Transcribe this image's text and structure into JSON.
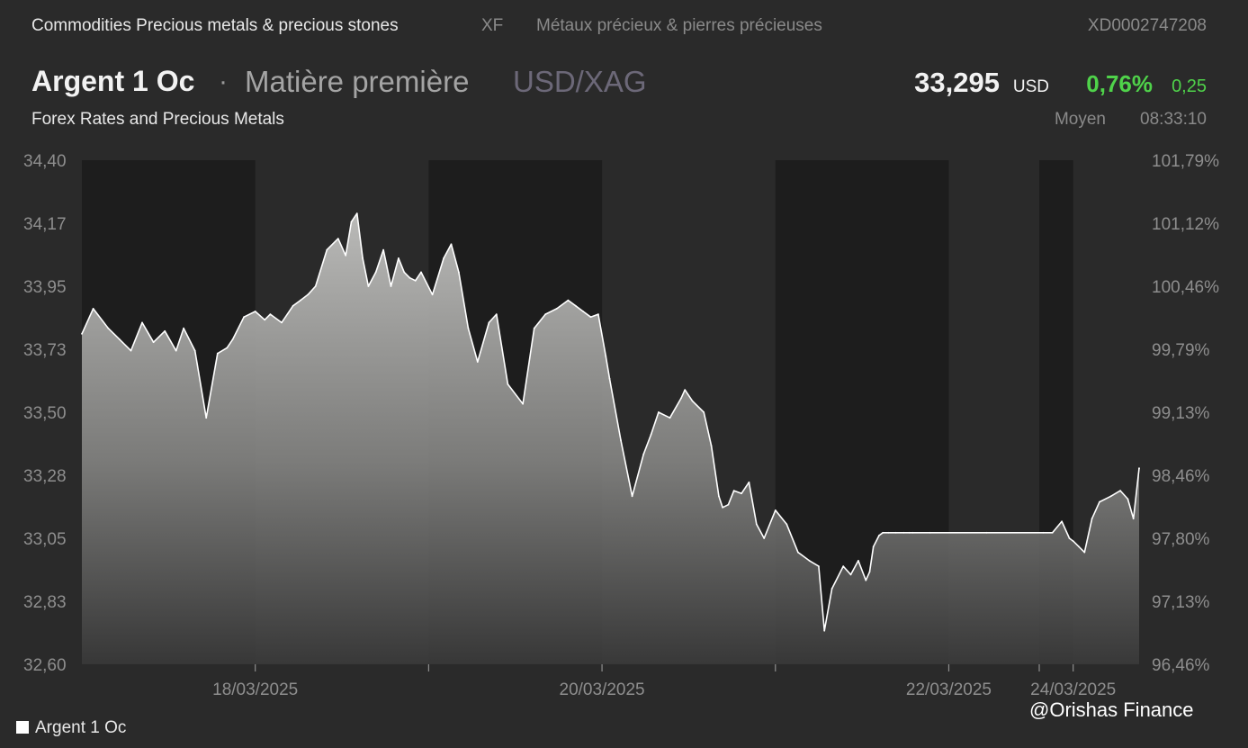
{
  "header": {
    "breadcrumb": "Commodities Precious metals & precious stones",
    "exchange": "XF",
    "breadcrumb_fr": "Métaux précieux & pierres précieuses",
    "isin": "XD0002747208"
  },
  "instrument": {
    "name": "Argent 1 Oc",
    "separator": "·",
    "type": "Matière première",
    "pair": "USD/XAG",
    "price": "33,295",
    "currency": "USD",
    "change_pct": "0,76%",
    "change_abs": "0,25",
    "source": "Forex Rates and Precious Metals",
    "quote_type": "Moyen",
    "time": "08:33:10"
  },
  "colors": {
    "background": "#2a2a2a",
    "plot_band_dark": "#1d1d1d",
    "plot_band_light": "#2a2a2a",
    "line": "#ffffff",
    "positive": "#4fd24a"
  },
  "chart_data": {
    "type": "area",
    "series": [
      {
        "name": "Argent 1 Oc",
        "x": [
          0,
          0.3,
          0.7,
          1.0,
          1.3,
          1.6,
          1.9,
          2.2,
          2.5,
          2.7,
          3.0,
          3.3,
          3.6,
          3.85,
          4.0,
          4.3,
          4.6,
          4.85,
          5.0,
          5.3,
          5.6,
          5.8,
          6.0,
          6.2,
          6.5,
          6.8,
          7.0,
          7.15,
          7.3,
          7.45,
          7.6,
          7.8,
          8.0,
          8.2,
          8.4,
          8.55,
          8.7,
          8.85,
          9.0,
          9.3,
          9.6,
          9.8,
          10.0,
          10.25,
          10.5,
          10.8,
          11.0,
          11.3,
          11.7,
          12.0,
          12.3,
          12.6,
          12.9,
          13.1,
          13.3,
          13.5,
          13.7,
          13.9,
          14.0,
          14.3,
          14.6,
          14.9,
          15.1,
          15.3,
          15.6,
          15.9,
          16.0,
          16.2,
          16.5,
          16.7,
          16.9,
          17.0,
          17.15,
          17.3,
          17.5,
          17.7,
          17.9,
          18.1,
          18.4,
          18.7,
          19.0,
          19.3,
          19.55,
          19.7,
          19.9,
          20.2,
          20.4,
          20.6,
          20.8,
          20.9,
          21.0,
          21.15,
          21.25,
          21.4,
          21.6,
          21.8,
          21.95,
          22.05,
          22.5,
          24.0,
          25.5,
          25.75,
          26.0,
          26.2,
          26.3,
          26.45,
          26.6,
          26.8,
          27.0,
          27.3,
          27.55,
          27.75,
          27.9,
          28.05
        ],
        "values": [
          33.78,
          33.87,
          33.8,
          33.76,
          33.72,
          33.82,
          33.75,
          33.79,
          33.72,
          33.8,
          33.72,
          33.48,
          33.71,
          33.73,
          33.76,
          33.84,
          33.86,
          33.83,
          33.85,
          33.82,
          33.88,
          33.9,
          33.92,
          33.95,
          34.08,
          34.12,
          34.06,
          34.18,
          34.21,
          34.05,
          33.95,
          34.0,
          34.08,
          33.95,
          34.05,
          34.0,
          33.98,
          33.97,
          34.0,
          33.92,
          34.05,
          34.1,
          34.0,
          33.8,
          33.68,
          33.82,
          33.85,
          33.6,
          33.53,
          33.8,
          33.85,
          33.87,
          33.9,
          33.88,
          33.86,
          33.84,
          33.85,
          33.7,
          33.62,
          33.4,
          33.2,
          33.35,
          33.42,
          33.5,
          33.48,
          33.55,
          33.58,
          33.54,
          33.5,
          33.38,
          33.2,
          33.16,
          33.17,
          33.22,
          33.21,
          33.25,
          33.1,
          33.05,
          33.15,
          33.1,
          33.0,
          32.97,
          32.95,
          32.72,
          32.87,
          32.95,
          32.92,
          32.97,
          32.9,
          32.93,
          33.02,
          33.06,
          33.07,
          33.07,
          33.07,
          33.07,
          33.07,
          33.07,
          33.07,
          33.07,
          33.07,
          33.07,
          33.11,
          33.05,
          33.04,
          33.02,
          33.0,
          33.12,
          33.18,
          33.2,
          33.22,
          33.19,
          33.12,
          33.3
        ]
      }
    ],
    "x_range": [
      0,
      28.05
    ],
    "ylim": [
      32.6,
      34.4
    ],
    "y_ticks": [
      "34,40",
      "34,17",
      "33,95",
      "33,73",
      "33,50",
      "33,28",
      "33,05",
      "32,83",
      "32,60"
    ],
    "y_ticks_right": [
      "101,79%",
      "101,12%",
      "100,46%",
      "99,79%",
      "99,13%",
      "98,46%",
      "97,80%",
      "97,13%",
      "96,46%"
    ],
    "x_tick_positions": [
      4.6,
      9.2,
      13.8,
      18.4,
      23.0,
      25.4,
      26.3
    ],
    "x_tick_labels": [
      {
        "label": "18/03/2025",
        "at": 4.6
      },
      {
        "label": "20/03/2025",
        "at": 13.8
      },
      {
        "label": "22/03/2025",
        "at": 23.0
      },
      {
        "label": "24/03/2025",
        "at": 26.3
      }
    ],
    "session_bands": [
      [
        0,
        4.6
      ],
      [
        9.2,
        13.8
      ],
      [
        18.4,
        23.0
      ],
      [
        25.4,
        26.3
      ]
    ],
    "legend": "Argent 1 Oc",
    "legend_position": "bottom-left",
    "grid": false
  },
  "watermark": "@Orishas Finance"
}
